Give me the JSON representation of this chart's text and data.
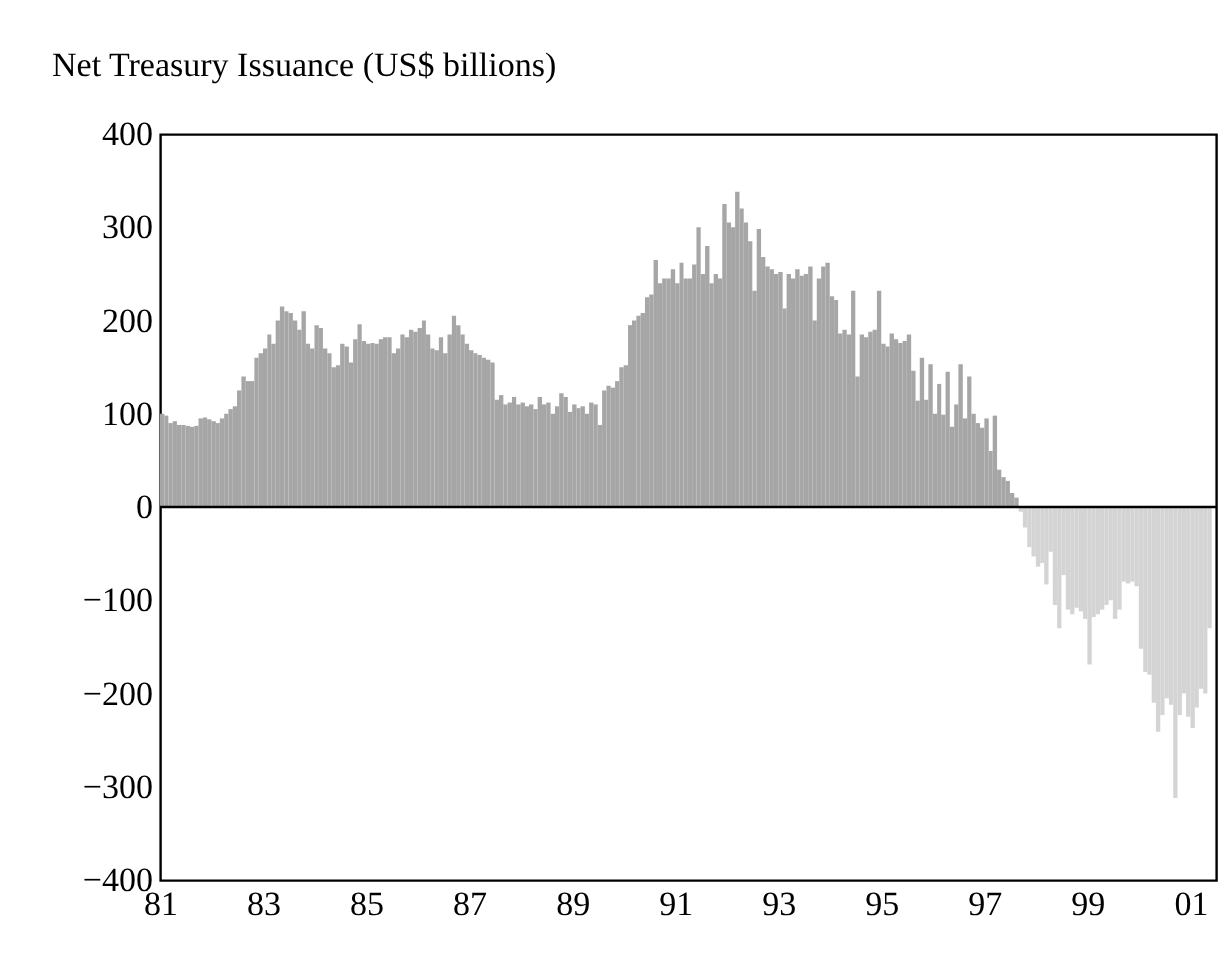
{
  "chart_data": {
    "type": "bar",
    "title": "Net Treasury Issuance (US$ billions)",
    "xlim": [
      "1981-01",
      "2001-07"
    ],
    "xticks": [
      {
        "value": "1981",
        "label": "81"
      },
      {
        "value": "1983",
        "label": "83"
      },
      {
        "value": "1985",
        "label": "85"
      },
      {
        "value": "1987",
        "label": "87"
      },
      {
        "value": "1989",
        "label": "89"
      },
      {
        "value": "1991",
        "label": "91"
      },
      {
        "value": "1993",
        "label": "93"
      },
      {
        "value": "1995",
        "label": "95"
      },
      {
        "value": "1997",
        "label": "97"
      },
      {
        "value": "1999",
        "label": "99"
      },
      {
        "value": "2001",
        "label": "01"
      }
    ],
    "ylim": [
      -400,
      400
    ],
    "yticks": [
      {
        "value": -400,
        "label": "−400"
      },
      {
        "value": -300,
        "label": "−300"
      },
      {
        "value": -200,
        "label": "−200"
      },
      {
        "value": -100,
        "label": "−100"
      },
      0,
      100,
      200,
      300,
      400
    ],
    "grid": false,
    "ref_lines": [
      {
        "axis": "y",
        "value": 0,
        "color": "#000000"
      }
    ],
    "series": [
      {
        "color": "#a6a6a6",
        "x": [
          "1981-01",
          "1981-02",
          "1981-03",
          "1981-04",
          "1981-05",
          "1981-06",
          "1981-07",
          "1981-08",
          "1981-09",
          "1981-10",
          "1981-11",
          "1981-12",
          "1982-01",
          "1982-02",
          "1982-03",
          "1982-04",
          "1982-05",
          "1982-06",
          "1982-07",
          "1982-08",
          "1982-09",
          "1982-10",
          "1982-11",
          "1982-12",
          "1983-01",
          "1983-02",
          "1983-03",
          "1983-04",
          "1983-05",
          "1983-06",
          "1983-07",
          "1983-08",
          "1983-09",
          "1983-10",
          "1983-11",
          "1983-12",
          "1984-01",
          "1984-02",
          "1984-03",
          "1984-04",
          "1984-05",
          "1984-06",
          "1984-07",
          "1984-08",
          "1984-09",
          "1984-10",
          "1984-11",
          "1984-12",
          "1985-01",
          "1985-02",
          "1985-03",
          "1985-04",
          "1985-05",
          "1985-06",
          "1985-07",
          "1985-08",
          "1985-09",
          "1985-10",
          "1985-11",
          "1985-12",
          "1986-01",
          "1986-02",
          "1986-03",
          "1986-04",
          "1986-05",
          "1986-06",
          "1986-07",
          "1986-08",
          "1986-09",
          "1986-10",
          "1986-11",
          "1986-12",
          "1987-01",
          "1987-02",
          "1987-03",
          "1987-04",
          "1987-05",
          "1987-06",
          "1987-07",
          "1987-08",
          "1987-09",
          "1987-10",
          "1987-11",
          "1987-12",
          "1988-01",
          "1988-02",
          "1988-03",
          "1988-04",
          "1988-05",
          "1988-06",
          "1988-07",
          "1988-08",
          "1988-09",
          "1988-10",
          "1988-11",
          "1988-12",
          "1989-01",
          "1989-02",
          "1989-03",
          "1989-04",
          "1989-05",
          "1989-06",
          "1989-07",
          "1989-08",
          "1989-09",
          "1989-10",
          "1989-11",
          "1989-12",
          "1990-01",
          "1990-02",
          "1990-03",
          "1990-04",
          "1990-05",
          "1990-06",
          "1990-07",
          "1990-08",
          "1990-09",
          "1990-10",
          "1990-11",
          "1990-12",
          "1991-01",
          "1991-02",
          "1991-03",
          "1991-04",
          "1991-05",
          "1991-06",
          "1991-07",
          "1991-08",
          "1991-09",
          "1991-10",
          "1991-11",
          "1991-12",
          "1992-01",
          "1992-02",
          "1992-03",
          "1992-04",
          "1992-05",
          "1992-06",
          "1992-07",
          "1992-08",
          "1992-09",
          "1992-10",
          "1992-11",
          "1992-12",
          "1993-01",
          "1993-02",
          "1993-03",
          "1993-04",
          "1993-05",
          "1993-06",
          "1993-07",
          "1993-08",
          "1993-09",
          "1993-10",
          "1993-11",
          "1993-12",
          "1994-01",
          "1994-02",
          "1994-03",
          "1994-04",
          "1994-05",
          "1994-06",
          "1994-07",
          "1994-08",
          "1994-09",
          "1994-10",
          "1994-11",
          "1994-12",
          "1995-01",
          "1995-02",
          "1995-03",
          "1995-04",
          "1995-05",
          "1995-06",
          "1995-07",
          "1995-08",
          "1995-09",
          "1995-10",
          "1995-11",
          "1995-12",
          "1996-01",
          "1996-02",
          "1996-03",
          "1996-04",
          "1996-05",
          "1996-06",
          "1996-07",
          "1996-08",
          "1996-09",
          "1996-10",
          "1996-11",
          "1996-12",
          "1997-01",
          "1997-02",
          "1997-03",
          "1997-04",
          "1997-05",
          "1997-06",
          "1997-07",
          "1997-08"
        ],
        "values": [
          100,
          98,
          90,
          92,
          88,
          88,
          87,
          86,
          87,
          95,
          96,
          94,
          92,
          90,
          95,
          100,
          105,
          108,
          125,
          140,
          135,
          135,
          160,
          165,
          170,
          185,
          175,
          200,
          215,
          210,
          208,
          200,
          190,
          210,
          175,
          170,
          195,
          192,
          170,
          165,
          150,
          152,
          175,
          172,
          155,
          180,
          196,
          178,
          175,
          176,
          175,
          180,
          182,
          182,
          165,
          170,
          185,
          182,
          190,
          188,
          192,
          200,
          185,
          170,
          168,
          182,
          165,
          185,
          205,
          195,
          185,
          175,
          168,
          165,
          163,
          160,
          158,
          155,
          115,
          120,
          110,
          112,
          118,
          110,
          112,
          108,
          110,
          105,
          118,
          110,
          112,
          100,
          108,
          122,
          118,
          102,
          110,
          106,
          108,
          100,
          112,
          110,
          88,
          125,
          130,
          128,
          135,
          150,
          152,
          195,
          200,
          205,
          208,
          225,
          228,
          265,
          240,
          245,
          245,
          255,
          240,
          262,
          245,
          245,
          260,
          300,
          250,
          280,
          240,
          250,
          245,
          325,
          305,
          300,
          338,
          320,
          305,
          285,
          232,
          298,
          268,
          258,
          255,
          250,
          252,
          213,
          250,
          245,
          255,
          248,
          250,
          258,
          200,
          245,
          258,
          262,
          226,
          222,
          186,
          190,
          185,
          232,
          140,
          185,
          182,
          188,
          190,
          232,
          175,
          172,
          186,
          180,
          176,
          178,
          185,
          146,
          114,
          160,
          115,
          153,
          100,
          132,
          99,
          145,
          86,
          110,
          153,
          95,
          140,
          100,
          90,
          85,
          95,
          60,
          98,
          40,
          32,
          28,
          15,
          10
        ]
      },
      {
        "color": "#d4d4d4",
        "x": [
          "1997-09",
          "1997-10",
          "1997-11",
          "1997-12",
          "1998-01",
          "1998-02",
          "1998-03",
          "1998-04",
          "1998-05",
          "1998-06",
          "1998-07",
          "1998-08",
          "1998-09",
          "1998-10",
          "1998-11",
          "1998-12",
          "1999-01",
          "1999-02",
          "1999-03",
          "1999-04",
          "1999-05",
          "1999-06",
          "1999-07",
          "1999-08",
          "1999-09",
          "1999-10",
          "1999-11",
          "1999-12",
          "2000-01",
          "2000-02",
          "2000-03",
          "2000-04",
          "2000-05",
          "2000-06",
          "2000-07",
          "2000-08",
          "2000-09",
          "2000-10",
          "2000-11",
          "2000-12",
          "2001-01",
          "2001-02",
          "2001-03",
          "2001-04",
          "2001-05"
        ],
        "values": [
          -5,
          -22,
          -43,
          -53,
          -64,
          -60,
          -83,
          -48,
          -105,
          -130,
          -73,
          -110,
          -115,
          -108,
          -112,
          -120,
          -169,
          -118,
          -115,
          -110,
          -105,
          -100,
          -120,
          -110,
          -80,
          -82,
          -80,
          -85,
          -152,
          -177,
          -180,
          -210,
          -241,
          -223,
          -205,
          -212,
          -312,
          -223,
          -200,
          -225,
          -237,
          -215,
          -195,
          -200,
          -130
        ]
      }
    ]
  }
}
